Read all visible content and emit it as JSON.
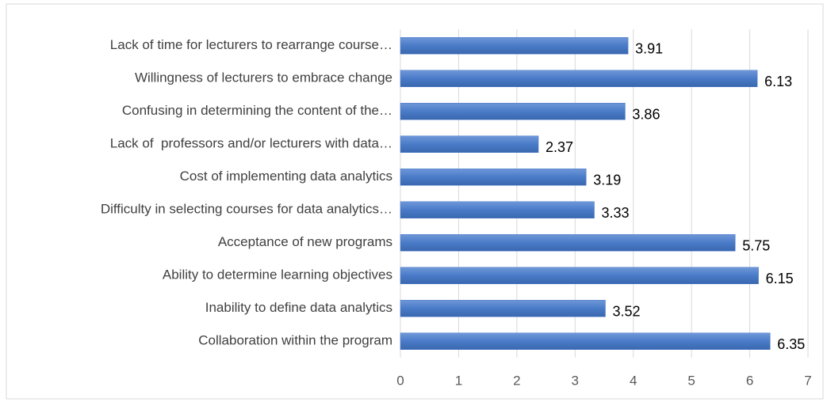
{
  "chart_data": {
    "type": "bar",
    "orientation": "horizontal",
    "categories": [
      "Lack of time for lecturers to rearrange course…",
      "Willingness of lecturers to embrace change",
      "Confusing in determining the content of the…",
      "Lack of  professors and/or lecturers with data…",
      "Cost of implementing data analytics",
      "Difficulty in selecting courses for data analytics…",
      "Acceptance of new programs",
      "Ability to determine learning objectives",
      "Inability to define data analytics",
      "Collaboration within the program"
    ],
    "values": [
      3.91,
      6.13,
      3.86,
      2.37,
      3.19,
      3.33,
      5.75,
      6.15,
      3.52,
      6.35
    ],
    "color": "#4a7bc8",
    "xlim": [
      0,
      7
    ],
    "xticks": [
      0,
      1,
      2,
      3,
      4,
      5,
      6,
      7
    ],
    "grid": true
  }
}
